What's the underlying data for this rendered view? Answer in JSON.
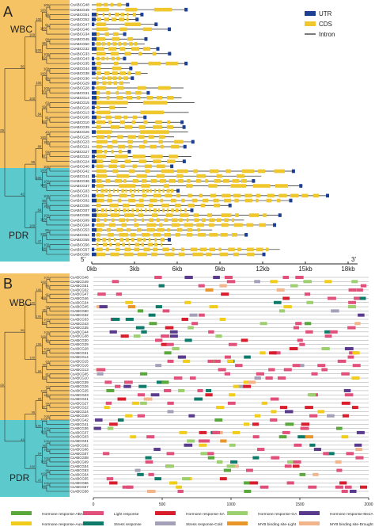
{
  "panels": {
    "a": {
      "letter": "A",
      "group_top": "WBC",
      "group_bottom": "PDR",
      "legend": [
        {
          "label": "UTR",
          "swatch": "utr"
        },
        {
          "label": "CDS",
          "swatch": "cds"
        },
        {
          "label": "Intron",
          "swatch": "intron"
        }
      ],
      "end5": "5'",
      "end3": "3'",
      "axis_ticks": [
        "0kb",
        "3kb",
        "6kb",
        "9kb",
        "12kb",
        "15kb",
        "18kb"
      ]
    },
    "b": {
      "letter": "B",
      "group_top": "WBC",
      "group_bottom": "PDR",
      "axis_ticks": [
        "0",
        "500",
        "1000",
        "1500",
        "2000"
      ],
      "legend": [
        {
          "label": "Hormone response-ABA",
          "color": "#5aa83c"
        },
        {
          "label": "Light response",
          "color": "#e0507a"
        },
        {
          "label": "Hormone response-SA",
          "color": "#d81e2c"
        },
        {
          "label": "Hormone response-GA",
          "color": "#9ccf6e"
        },
        {
          "label": "Hormone response-MeJA",
          "color": "#5a3a8c"
        },
        {
          "label": "Hormone response-Auxin",
          "color": "#f2cc1a"
        },
        {
          "label": "Stress response",
          "color": "#0e7a6a"
        },
        {
          "label": "Stress response-Cold",
          "color": "#a4a0b8"
        },
        {
          "label": "MYB binding site-Light",
          "color": "#e8962a"
        },
        {
          "label": "MYB binding site-Drought",
          "color": "#f2b48a"
        }
      ]
    }
  },
  "colors": {
    "wbc_bg": "#f5c264",
    "pdr_bg": "#5cc9cc",
    "utr": "#1c3f94",
    "cds": "#f0c72c",
    "intron": "#222222"
  },
  "genes_a": [
    "CsABCG48",
    "CsABCG49",
    "CsABCG51",
    "CsABCG52",
    "CsABCG47",
    "CsABCG46",
    "CsABCG34",
    "CsABCG45",
    "CsABCG50",
    "CsABCG32",
    "CsABCG33",
    "CsABCG43",
    "CsABCG35",
    "CsABCG44",
    "CsABCG38",
    "CsABCG30",
    "CsABCG29",
    "CsABCG28",
    "CsABCG31",
    "CsABCG14",
    "CsABCG15",
    "CsABCG16",
    "CsABCG13",
    "CsABCG05",
    "CsABCG10",
    "CsABCG39",
    "CsABCG26",
    "CsABCG25",
    "CsABCG23",
    "CsABCG21",
    "CsABCG27",
    "CsABCG22",
    "CsABCG24",
    "CsABCG40",
    "CsABCG42",
    "CsABCG41",
    "CsABCG36",
    "CsABCG37",
    "CsABCG03",
    "CsABCG01",
    "CsABCG02",
    "CsABCG06",
    "CsABCG07",
    "CsABCG08",
    "CsABCG09",
    "CsABCG04",
    "CsABCG53",
    "CsABCG54",
    "CsABCG55",
    "CsABCG56",
    "CsABCG57",
    "CsABCG58"
  ],
  "genes_b": [
    "CsABCG48",
    "CsABCG49",
    "CsABCG51",
    "CsABCG52",
    "CsABCG47",
    "CsABCG46",
    "CsABCG34",
    "CsABCG45",
    "CsABCG50",
    "CsABCG32",
    "CsABCG33",
    "CsABCG43",
    "CsABCG35",
    "CsABCG44",
    "CsABCG38",
    "CsABCG30",
    "CsABCG29",
    "CsABCG28",
    "CsABCG31",
    "CsABCG14",
    "CsABCG15",
    "CsABCG16",
    "CsABCG13",
    "CsABCG05",
    "CsABCG10",
    "CsABCG39",
    "CsABCG26",
    "CsABCG25",
    "CsABCG23",
    "CsABCG21",
    "CsABCG27",
    "CsABCG22",
    "CsABCG24",
    "CsABCG40",
    "CsABCG42",
    "CsABCG41",
    "CsABCG36",
    "CsABCG37",
    "CsABCG03",
    "CsABCG01",
    "CsABCG02",
    "CsABCG06",
    "CsABCG07",
    "CsABCG08",
    "CsABCG09",
    "CsABCG04",
    "CsABCG53",
    "CsABCG54",
    "CsABCG55",
    "CsABCG56",
    "CsABCG57",
    "CsABCG58"
  ],
  "bootstrap_a": [
    "100",
    "99",
    "100",
    "61",
    "100",
    "100",
    "98",
    "96",
    "100",
    "92",
    "100",
    "100",
    "100",
    "99",
    "100",
    "100",
    "70",
    "100",
    "63",
    "99",
    "81",
    "93",
    "84",
    "100",
    "56",
    "40",
    "100",
    "100",
    "99",
    "57",
    "88",
    "100",
    "100",
    "100",
    "100",
    "100",
    "96",
    "100",
    "100",
    "98",
    "100",
    "100",
    "64",
    "86",
    "100",
    "100",
    "98",
    "47",
    "100",
    "42",
    "100"
  ],
  "bootstrap_b": [
    "100",
    "99",
    "100",
    "61",
    "100",
    "100",
    "98",
    "96",
    "100",
    "92",
    "100",
    "100",
    "100",
    "99",
    "100",
    "100",
    "70",
    "100",
    "63",
    "99",
    "81",
    "93",
    "84",
    "100",
    "56",
    "40",
    "100",
    "100",
    "99",
    "57",
    "88",
    "100",
    "100",
    "100",
    "100",
    "100",
    "96",
    "100",
    "100",
    "98",
    "100",
    "100",
    "64",
    "86",
    "100",
    "100",
    "98",
    "47",
    "100",
    "42",
    "100"
  ]
}
